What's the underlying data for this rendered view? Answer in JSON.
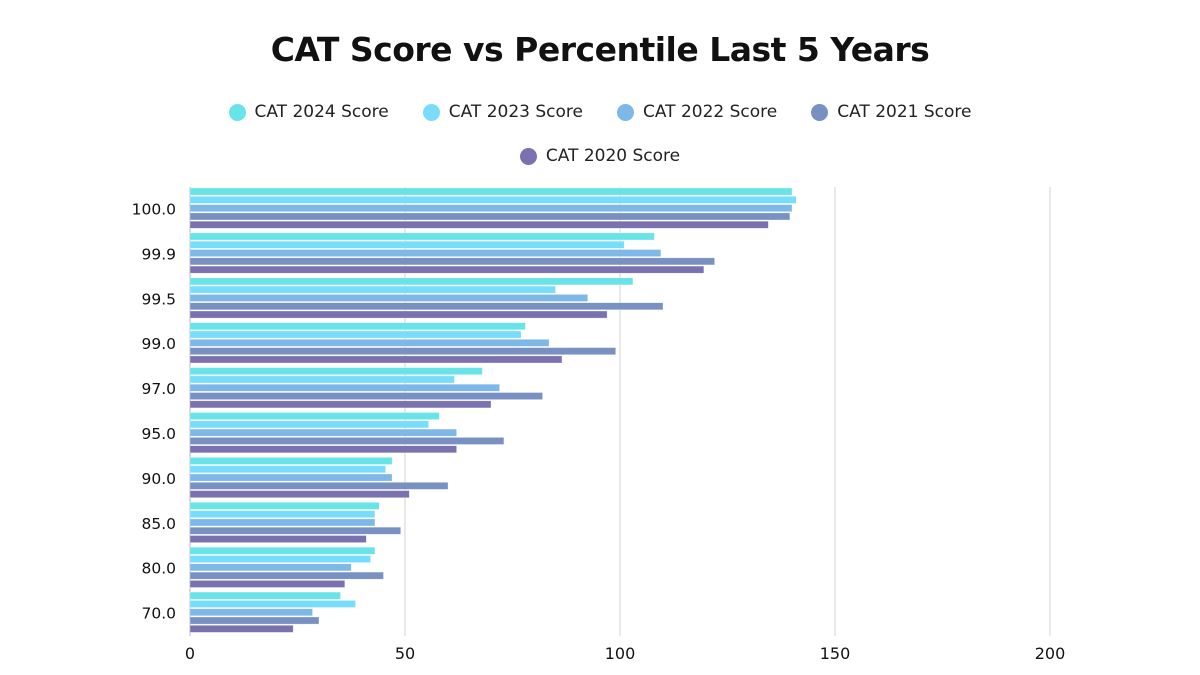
{
  "chart_data": {
    "type": "bar",
    "orientation": "horizontal",
    "title": "CAT Score vs Percentile Last 5 Years",
    "xlabel": "",
    "ylabel": "",
    "xlim": [
      0,
      200
    ],
    "xticks": [
      "0",
      "50",
      "100",
      "150",
      "200"
    ],
    "grid": true,
    "legend_position": "top",
    "categories": [
      "100.0",
      "99.9",
      "99.5",
      "99.0",
      "97.0",
      "95.0",
      "90.0",
      "85.0",
      "80.0",
      "70.0"
    ],
    "series": [
      {
        "name": "CAT 2024 Score",
        "color": "#68e3e8",
        "values": [
          140,
          108,
          103,
          78,
          68,
          58,
          47,
          44,
          43,
          35
        ]
      },
      {
        "name": "CAT 2023 Score",
        "color": "#78dcfc",
        "values": [
          141,
          101,
          85,
          77,
          61.5,
          55.5,
          45.5,
          43,
          42,
          38.5
        ]
      },
      {
        "name": "CAT 2022 Score",
        "color": "#7db8e8",
        "values": [
          140,
          109.5,
          92.5,
          83.5,
          72,
          62,
          47,
          43,
          37.5,
          28.5
        ]
      },
      {
        "name": "CAT 2021 Score",
        "color": "#7891c2",
        "values": [
          139.5,
          122,
          110,
          99,
          82,
          73,
          60,
          49,
          45,
          30
        ]
      },
      {
        "name": "CAT 2020 Score",
        "color": "#7a71b0",
        "values": [
          134.5,
          119.5,
          97,
          86.5,
          70,
          62,
          51,
          41,
          36,
          24
        ]
      }
    ]
  }
}
